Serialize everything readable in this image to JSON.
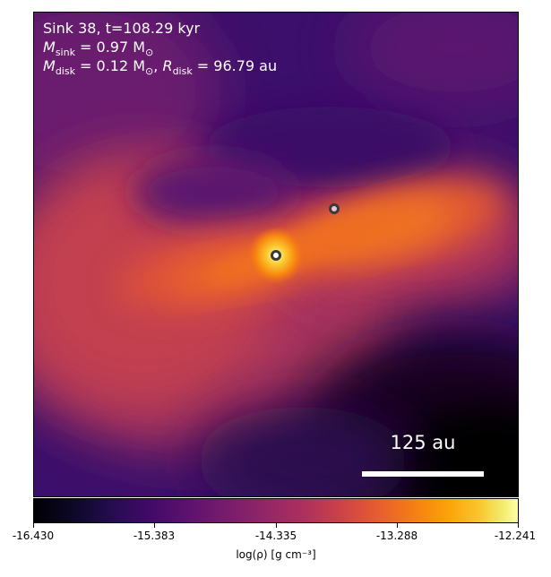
{
  "annotation": {
    "line1": "Sink 38, t=108.29 kyr",
    "m_sink_symbol": "M",
    "m_sink_sub": "sink",
    "m_sink_value": " = 0.97 M",
    "m_sink_unit_sub": "⊙",
    "m_disk_symbol": "M",
    "m_disk_sub": "disk",
    "m_disk_value": " = 0.12 M",
    "m_disk_unit_sub": "⊙",
    "r_disk_sep": ", ",
    "r_disk_symbol": "R",
    "r_disk_sub": "disk",
    "r_disk_value": " = 96.79 au"
  },
  "scale_bar": {
    "label": "125 au"
  },
  "colorbar": {
    "label": "log(ρ) [g cm⁻³]",
    "ticks": [
      "-16.430",
      "-15.383",
      "-14.335",
      "-13.288",
      "-12.241"
    ],
    "colormap": "inferno"
  },
  "colors": {
    "background_low": "#000004",
    "background_mid": "#932667",
    "background_high": "#fcffa4",
    "text": "#ffffff"
  }
}
